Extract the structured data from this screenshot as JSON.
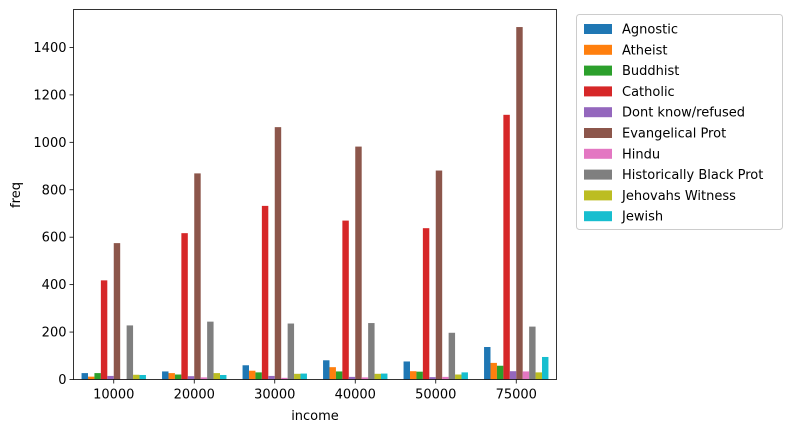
{
  "chart_data": {
    "type": "bar",
    "title": "",
    "xlabel": "income",
    "ylabel": "freq",
    "ylim": [
      0,
      1560
    ],
    "yticks": [
      0,
      200,
      400,
      600,
      800,
      1000,
      1200,
      1400
    ],
    "grid": false,
    "legend_position": "outside upper right",
    "categories": [
      "10000",
      "20000",
      "30000",
      "40000",
      "50000",
      "75000"
    ],
    "series": [
      {
        "name": "Agnostic",
        "color": "#1f77b4",
        "values": [
          27,
          34,
          60,
          81,
          76,
          137
        ]
      },
      {
        "name": "Atheist",
        "color": "#ff7f0e",
        "values": [
          12,
          27,
          37,
          52,
          35,
          70
        ]
      },
      {
        "name": "Buddhist",
        "color": "#2ca02c",
        "values": [
          27,
          21,
          30,
          34,
          33,
          58
        ]
      },
      {
        "name": "Catholic",
        "color": "#d62728",
        "values": [
          418,
          617,
          732,
          670,
          638,
          1116
        ]
      },
      {
        "name": "Dont know/refused",
        "color": "#9467bd",
        "values": [
          15,
          14,
          15,
          11,
          10,
          35
        ]
      },
      {
        "name": "Evangelical Prot",
        "color": "#8c564b",
        "values": [
          575,
          869,
          1064,
          982,
          881,
          1486
        ]
      },
      {
        "name": "Hindu",
        "color": "#e377c2",
        "values": [
          1,
          9,
          7,
          9,
          11,
          34
        ]
      },
      {
        "name": "Historically Black Prot",
        "color": "#7f7f7f",
        "values": [
          228,
          244,
          236,
          238,
          197,
          223
        ]
      },
      {
        "name": "Jehovahs Witness",
        "color": "#bcbd22",
        "values": [
          20,
          27,
          24,
          24,
          21,
          30
        ]
      },
      {
        "name": "Jewish",
        "color": "#17becf",
        "values": [
          19,
          19,
          25,
          25,
          30,
          95
        ]
      }
    ]
  }
}
